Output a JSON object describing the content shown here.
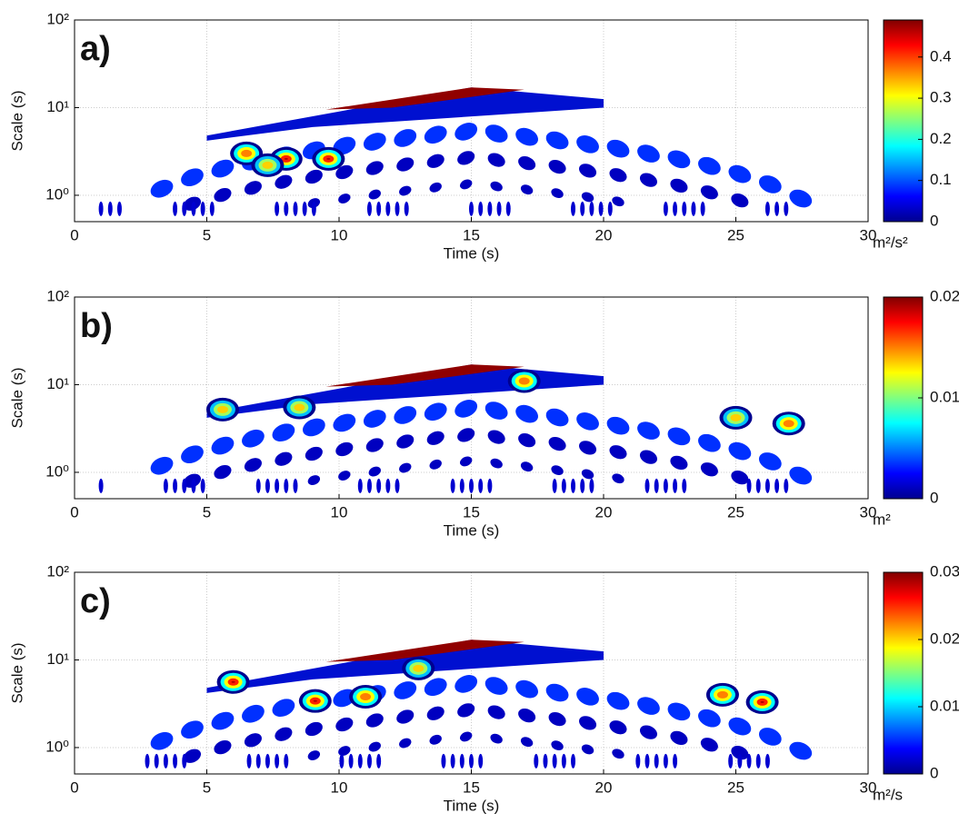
{
  "chart_data": [
    {
      "type": "heatmap",
      "panel_label": "a)",
      "xlabel": "Time (s)",
      "ylabel": "Scale (s)",
      "xlim": [
        0,
        30
      ],
      "xticks": [
        0,
        5,
        10,
        15,
        20,
        25,
        30
      ],
      "ylim": [
        0.5,
        100
      ],
      "yticks": [
        {
          "value": 1,
          "label": "10⁰"
        },
        {
          "value": 10,
          "label": "10¹"
        },
        {
          "value": 100,
          "label": "10²"
        }
      ],
      "log_y": true,
      "grid": true,
      "colormap": "jet",
      "colorbar": {
        "lim": [
          0,
          0.49
        ],
        "ticks": [
          0,
          0.1,
          0.2,
          0.3,
          0.4
        ],
        "label": "m²/s²"
      }
    },
    {
      "type": "heatmap",
      "panel_label": "b)",
      "xlabel": "Time (s)",
      "ylabel": "Scale (s)",
      "xlim": [
        0,
        30
      ],
      "xticks": [
        0,
        5,
        10,
        15,
        20,
        25,
        30
      ],
      "ylim": [
        0.5,
        100
      ],
      "yticks": [
        {
          "value": 1,
          "label": "10⁰"
        },
        {
          "value": 10,
          "label": "10¹"
        },
        {
          "value": 100,
          "label": "10²"
        }
      ],
      "log_y": true,
      "grid": true,
      "colormap": "jet",
      "colorbar": {
        "lim": [
          0,
          0.02
        ],
        "ticks": [
          0,
          0.01,
          0.02
        ],
        "label": "m²"
      }
    },
    {
      "type": "heatmap",
      "panel_label": "c)",
      "xlabel": "Time (s)",
      "ylabel": "Scale (s)",
      "xlim": [
        0,
        30
      ],
      "xticks": [
        0,
        5,
        10,
        15,
        20,
        25,
        30
      ],
      "ylim": [
        0.5,
        100
      ],
      "yticks": [
        {
          "value": 1,
          "label": "10⁰"
        },
        {
          "value": 10,
          "label": "10¹"
        },
        {
          "value": 100,
          "label": "10²"
        }
      ],
      "log_y": true,
      "grid": true,
      "colormap": "jet",
      "colorbar": {
        "lim": [
          0,
          0.03
        ],
        "ticks": [
          0,
          0.01,
          0.02,
          0.03
        ],
        "label": "m²/s"
      }
    }
  ]
}
